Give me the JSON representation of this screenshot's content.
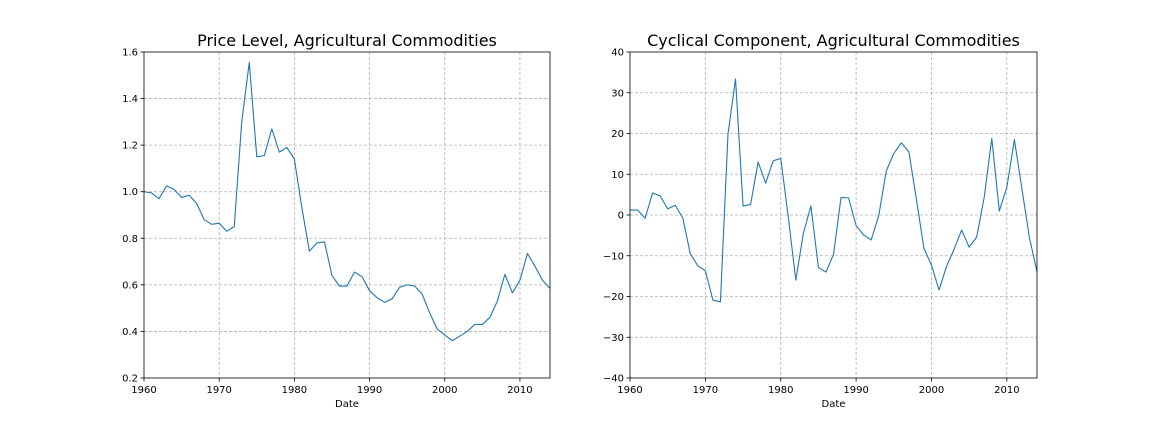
{
  "chart_data": [
    {
      "type": "line",
      "title": "Price Level, Agricultural Commodities",
      "xlabel": "Date",
      "ylabel": "",
      "xlim": [
        1960,
        2014
      ],
      "ylim": [
        0.2,
        1.6
      ],
      "xticks": [
        1960,
        1970,
        1980,
        1990,
        2000,
        2010
      ],
      "xtick_labels": [
        "1960",
        "1970",
        "1980",
        "1990",
        "2000",
        "2010"
      ],
      "yticks": [
        0.2,
        0.4,
        0.6,
        0.8,
        1.0,
        1.2,
        1.4,
        1.6
      ],
      "ytick_labels": [
        "0.2",
        "0.4",
        "0.6",
        "0.8",
        "1.0",
        "1.2",
        "1.4",
        "1.6"
      ],
      "grid": true,
      "color": "#1f77b4",
      "x": [
        1960,
        1961,
        1962,
        1963,
        1964,
        1965,
        1966,
        1967,
        1968,
        1969,
        1970,
        1971,
        1972,
        1973,
        1974,
        1975,
        1976,
        1977,
        1978,
        1979,
        1980,
        1981,
        1982,
        1983,
        1984,
        1985,
        1986,
        1987,
        1988,
        1989,
        1990,
        1991,
        1992,
        1993,
        1994,
        1995,
        1996,
        1997,
        1998,
        1999,
        2000,
        2001,
        2002,
        2003,
        2004,
        2005,
        2006,
        2007,
        2008,
        2009,
        2010,
        2011,
        2012,
        2013,
        2014
      ],
      "values": [
        1.0,
        0.995,
        0.97,
        1.025,
        1.01,
        0.975,
        0.985,
        0.95,
        0.88,
        0.86,
        0.865,
        0.83,
        0.85,
        1.3,
        1.555,
        1.15,
        1.155,
        1.27,
        1.17,
        1.19,
        1.14,
        0.93,
        0.745,
        0.78,
        0.785,
        0.64,
        0.595,
        0.595,
        0.655,
        0.635,
        0.575,
        0.545,
        0.525,
        0.54,
        0.59,
        0.6,
        0.595,
        0.56,
        0.48,
        0.41,
        0.385,
        0.36,
        0.38,
        0.4,
        0.43,
        0.43,
        0.46,
        0.53,
        0.645,
        0.565,
        0.62,
        0.735,
        0.68,
        0.62,
        0.585
      ]
    },
    {
      "type": "line",
      "title": "Cyclical Component, Agricultural Commodities",
      "xlabel": "Date",
      "ylabel": "",
      "xlim": [
        1960,
        2014
      ],
      "ylim": [
        -40,
        40
      ],
      "xticks": [
        1960,
        1970,
        1980,
        1990,
        2000,
        2010
      ],
      "xtick_labels": [
        "1960",
        "1970",
        "1980",
        "1990",
        "2000",
        "2010"
      ],
      "yticks": [
        -40,
        -30,
        -20,
        -10,
        0,
        10,
        20,
        30,
        40
      ],
      "ytick_labels": [
        "−40",
        "−30",
        "−20",
        "−10",
        "0",
        "10",
        "20",
        "30",
        "40"
      ],
      "grid": true,
      "color": "#1f77b4",
      "x": [
        1960,
        1961,
        1962,
        1963,
        1964,
        1965,
        1966,
        1967,
        1968,
        1969,
        1970,
        1971,
        1972,
        1973,
        1974,
        1975,
        1976,
        1977,
        1978,
        1979,
        1980,
        1981,
        1982,
        1983,
        1984,
        1985,
        1986,
        1987,
        1988,
        1989,
        1990,
        1991,
        1992,
        1993,
        1994,
        1995,
        1996,
        1997,
        1998,
        1999,
        2000,
        2001,
        2002,
        2003,
        2004,
        2005,
        2006,
        2007,
        2008,
        2009,
        2010,
        2011,
        2012,
        2013,
        2014
      ],
      "values": [
        1.2,
        1.2,
        -0.8,
        5.4,
        4.7,
        1.5,
        2.4,
        -0.7,
        -9.5,
        -12.5,
        -13.7,
        -20.9,
        -21.3,
        19.8,
        33.4,
        2.2,
        2.6,
        13.0,
        7.8,
        13.3,
        13.9,
        -0.5,
        -16.0,
        -4.5,
        2.2,
        -12.9,
        -14.0,
        -9.7,
        4.3,
        4.2,
        -2.6,
        -4.9,
        -6.1,
        -0.2,
        10.8,
        15.1,
        17.7,
        15.5,
        3.9,
        -8.2,
        -12.3,
        -18.4,
        -12.6,
        -8.4,
        -3.7,
        -7.9,
        -5.4,
        4.4,
        18.8,
        1.0,
        6.8,
        18.5,
        6.4,
        -5.6,
        -13.9
      ]
    }
  ]
}
